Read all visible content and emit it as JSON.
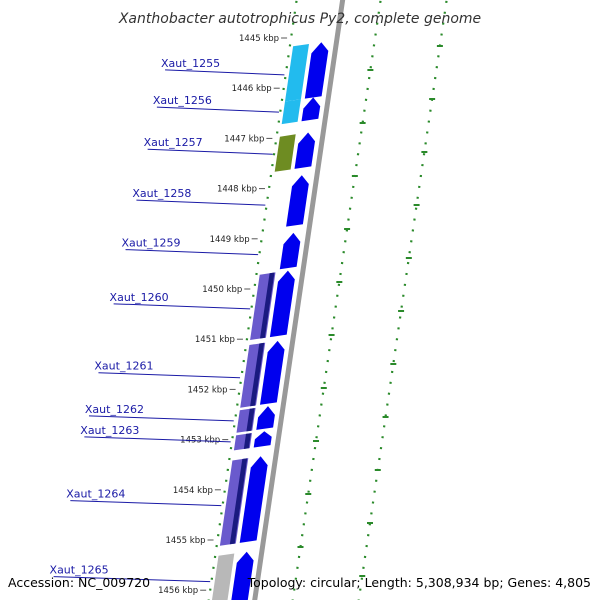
{
  "title": "Xanthobacter autotrophicus Py2, complete genome",
  "accession": "Accession: NC_009720",
  "summary": "Topology: circular; Length: 5,308,934 bp; Genes: 4,805",
  "colors": {
    "forward": "#0000ee",
    "cyan": "#22bbee",
    "olive": "#6e8c22",
    "purple": "#6a5acd",
    "navy": "#1a1a80",
    "gray": "#b8b8b8",
    "label": "#1a1aa6",
    "ring_dots": "#2a8a2a",
    "backbone": "#999999"
  },
  "ticks": [
    {
      "kbp": 1445,
      "label": "1445 kbp"
    },
    {
      "kbp": 1446,
      "label": "1446 kbp"
    },
    {
      "kbp": 1447,
      "label": "1447 kbp"
    },
    {
      "kbp": 1448,
      "label": "1448 kbp"
    },
    {
      "kbp": 1449,
      "label": "1449 kbp"
    },
    {
      "kbp": 1450,
      "label": "1450 kbp"
    },
    {
      "kbp": 1451,
      "label": "1451 kbp"
    },
    {
      "kbp": 1452,
      "label": "1452 kbp"
    },
    {
      "kbp": 1453,
      "label": "1453 kbp"
    },
    {
      "kbp": 1454,
      "label": "1454 kbp"
    },
    {
      "kbp": 1455,
      "label": "1455 kbp"
    },
    {
      "kbp": 1456,
      "label": "1456 kbp"
    }
  ],
  "genes": [
    {
      "name": "Xaut_1255",
      "start_kbp": 1445.05,
      "end_kbp": 1446.15,
      "category": "cyan"
    },
    {
      "name": "Xaut_1256",
      "start_kbp": 1446.15,
      "end_kbp": 1446.6,
      "category": "cyan"
    },
    {
      "name": "Xaut_1257",
      "start_kbp": 1446.85,
      "end_kbp": 1447.55,
      "category": "olive"
    },
    {
      "name": "Xaut_1258",
      "start_kbp": 1447.7,
      "end_kbp": 1448.7,
      "category": "none"
    },
    {
      "name": "Xaut_1259",
      "start_kbp": 1448.85,
      "end_kbp": 1449.55,
      "category": "none"
    },
    {
      "name": "Xaut_1260",
      "start_kbp": 1449.6,
      "end_kbp": 1450.9,
      "category": "purple"
    },
    {
      "name": "Xaut_1261",
      "start_kbp": 1451.0,
      "end_kbp": 1452.25,
      "category": "purple"
    },
    {
      "name": "Xaut_1262",
      "start_kbp": 1452.3,
      "end_kbp": 1452.75,
      "category": "purple"
    },
    {
      "name": "Xaut_1263",
      "start_kbp": 1452.8,
      "end_kbp": 1453.1,
      "category": "purple"
    },
    {
      "name": "Xaut_1264",
      "start_kbp": 1453.3,
      "end_kbp": 1455.0,
      "category": "purple"
    },
    {
      "name": "Xaut_1265",
      "start_kbp": 1455.2,
      "end_kbp": 1456.2,
      "category": "gray"
    }
  ]
}
